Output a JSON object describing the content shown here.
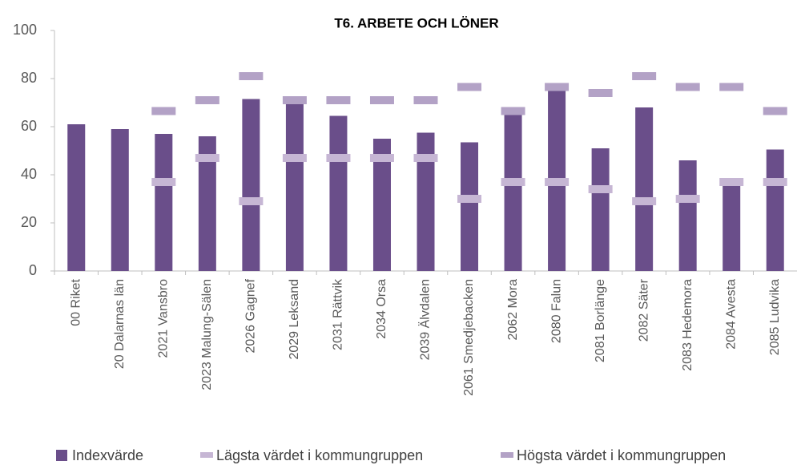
{
  "chart_data": {
    "type": "bar",
    "title": "T6. ARBETE OCH LÖNER",
    "categories": [
      "00 Riket",
      "20 Dalarnas län",
      "2021 Vansbro",
      "2023 Malung-Sälen",
      "2026 Gagnef",
      "2029 Leksand",
      "2031 Rättvik",
      "2034 Orsa",
      "2039 Älvdalen",
      "2061 Smedjebacken",
      "2062 Mora",
      "2080 Falun",
      "2081 Borlänge",
      "2082 Säter",
      "2083 Hedemora",
      "2084 Avesta",
      "2085 Ludvika"
    ],
    "series": [
      {
        "name": "Indexvärde",
        "color": "#6a4e8a",
        "mark": "bar",
        "values": [
          61,
          59,
          57,
          56,
          71.5,
          70,
          64.5,
          55,
          57.5,
          53.5,
          66,
          75.5,
          51,
          68,
          46,
          37,
          50.5
        ]
      },
      {
        "name": "Lägsta värdet i kommungruppen",
        "color": "#c6b6d4",
        "mark": "dash",
        "values": [
          null,
          null,
          37,
          47,
          29,
          47,
          47,
          47,
          47,
          30,
          37,
          37,
          34,
          29,
          30,
          37,
          37
        ]
      },
      {
        "name": "Högsta värdet i kommungruppen",
        "color": "#b3a2c6",
        "mark": "dash",
        "values": [
          null,
          null,
          66.5,
          71,
          81,
          71,
          71,
          71,
          71,
          76.5,
          66.5,
          76.5,
          74,
          81,
          76.5,
          76.5,
          66.5
        ]
      }
    ],
    "ylim": [
      0,
      100
    ],
    "yticks": [
      0,
      20,
      40,
      60,
      80,
      100
    ]
  }
}
